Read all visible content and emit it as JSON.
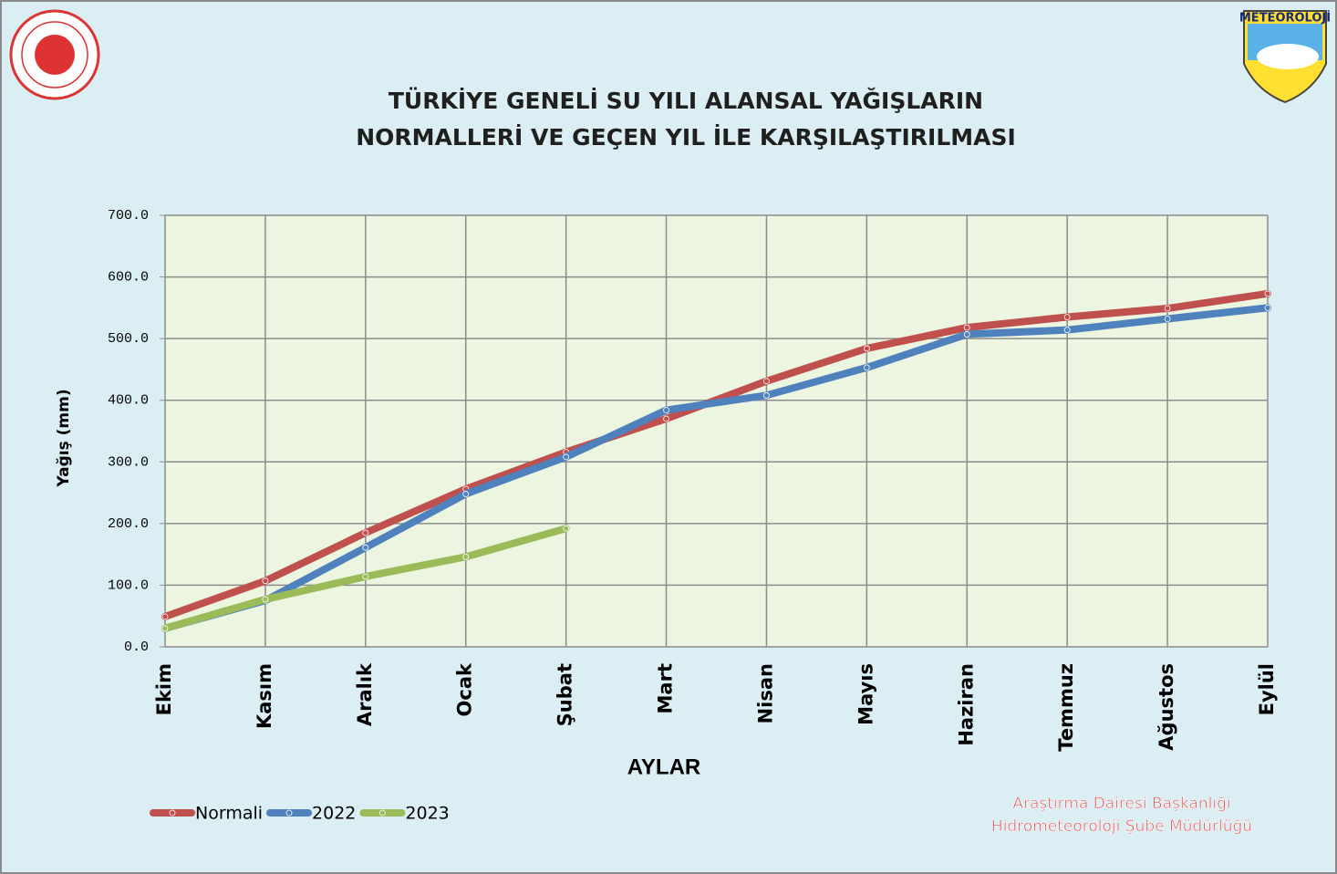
{
  "chart_data": {
    "type": "line",
    "title": [
      "TÜRKİYE GENELİ  SU YILI ALANSAL YAĞIŞLARIN",
      "NORMALLERİ VE GEÇEN YIL İLE KARŞILAŞTIRILMASI"
    ],
    "y_label": "Yağış (mm)",
    "x_label": "AYLAR",
    "categories": [
      "Ekim",
      "Kasım",
      "Aralık",
      "Ocak",
      "Şubat",
      "Mart",
      "Nisan",
      "Mayıs",
      "Haziran",
      "Temmuz",
      "Ağustos",
      "Eylül"
    ],
    "series": [
      {
        "name": "Normali",
        "color": "#c0504d",
        "values": [
          49,
          107,
          185,
          256,
          316,
          370,
          431,
          484,
          518,
          535,
          549,
          573
        ]
      },
      {
        "name": "2022",
        "color": "#4f81bd",
        "values": [
          30,
          75,
          161,
          248,
          308,
          384,
          408,
          453,
          507,
          514,
          532,
          550
        ]
      },
      {
        "name": "2023",
        "color": "#9bbb59",
        "values": [
          30,
          77,
          114,
          146,
          192,
          null,
          null,
          null,
          null,
          null,
          null,
          null
        ]
      }
    ],
    "ylim": [
      0,
      700
    ],
    "yticks": [
      {
        "value": 0,
        "label": "0.0"
      },
      {
        "value": 100,
        "label": "100.0"
      },
      {
        "value": 200,
        "label": "200.0"
      },
      {
        "value": 300,
        "label": "300.0"
      },
      {
        "value": 400,
        "label": "400.0"
      },
      {
        "value": 500,
        "label": "500.0"
      },
      {
        "value": 600,
        "label": "600.0"
      },
      {
        "value": 700,
        "label": "700.0"
      }
    ],
    "grid": true,
    "legend": "bottom-left"
  },
  "credits": [
    "Araştırma Dairesi Başkanlığı",
    "Hidrometeoroloji Şube Müdürlüğü"
  ],
  "logo": "METEOROLOJİ"
}
